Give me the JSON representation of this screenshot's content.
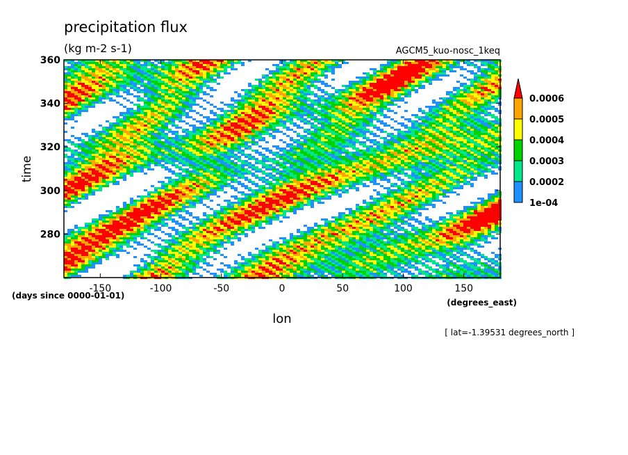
{
  "chart_data": {
    "type": "heatmap",
    "title": "precipitation flux",
    "units": "(kg m-2 s-1)",
    "model": "AGCM5_kuo-nosc_1keq",
    "xlabel": "lon",
    "x_units": "(degrees_east)",
    "ylabel": "time",
    "y_units": "(days since 0000-01-01)",
    "fixed_coordinate": "[ lat=-1.39531 degrees_north ]",
    "x_range": [
      -180,
      180
    ],
    "y_range": [
      260,
      360
    ],
    "x_ticks": [
      -150,
      -100,
      -50,
      0,
      50,
      100,
      150
    ],
    "x_tick_labels": [
      "-150",
      "-100",
      "-50",
      "0",
      "50",
      "100",
      "150"
    ],
    "y_ticks": [
      280,
      300,
      320,
      340,
      360
    ],
    "y_tick_labels": [
      "280",
      "300",
      "320",
      "340",
      "360"
    ],
    "colorbar": {
      "levels": [
        0.0001,
        0.0002,
        0.0003,
        0.0004,
        0.0005,
        0.0006
      ],
      "labels": [
        "1e-04",
        "0.0002",
        "0.0003",
        "0.0004",
        "0.0005",
        "0.0006"
      ],
      "colors": [
        "#1e90ff",
        "#00e68c",
        "#00d200",
        "#ffff00",
        "#ffa500",
        "#ff0000"
      ],
      "extend": "max",
      "below_min_color": "#ffffff"
    },
    "pattern": "eastward-propagating (diagonal) rain bands across all longitudes; white where below 1e-04",
    "grid": false,
    "legend_position": "right"
  }
}
